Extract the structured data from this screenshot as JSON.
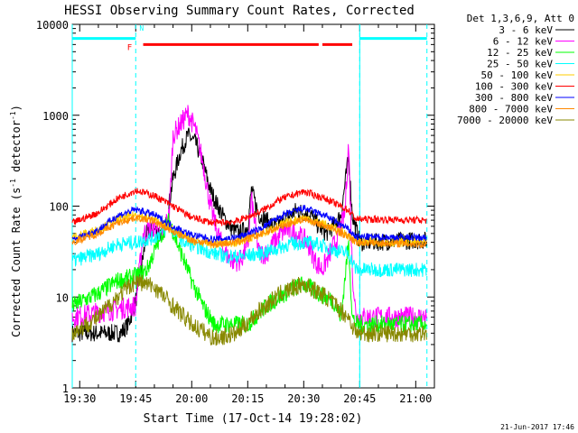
{
  "chart_data": {
    "type": "line",
    "title": "HESSI Observing Summary Count Rates, Corrected",
    "xlabel": "Start Time (17-Oct-14 19:28:02)",
    "ylabel_main": "Corrected Count Rate (s",
    "ylabel_sup": "-1",
    "ylabel_mid": " detector",
    "ylabel_sup2": "-1",
    "ylabel_end": ")",
    "yscale": "log",
    "ylim": [
      1,
      10000
    ],
    "xlim_minutes": [
      -2,
      95
    ],
    "xticks": [
      {
        "m": 0,
        "label": "19:30"
      },
      {
        "m": 15,
        "label": "19:45"
      },
      {
        "m": 30,
        "label": "20:00"
      },
      {
        "m": 45,
        "label": "20:15"
      },
      {
        "m": 60,
        "label": "20:30"
      },
      {
        "m": 75,
        "label": "20:45"
      },
      {
        "m": 90,
        "label": "21:00"
      }
    ],
    "yticks": [
      {
        "v": 1,
        "label": "1"
      },
      {
        "v": 10,
        "label": "10"
      },
      {
        "v": 100,
        "label": "100"
      },
      {
        "v": 1000,
        "label": "1000"
      },
      {
        "v": 10000,
        "label": "10000"
      }
    ],
    "legend_header": "Det 1,3,6,9, Att 0",
    "series": [
      {
        "name": "3 - 6 keV",
        "color": "#000000",
        "points": [
          [
            -2,
            4
          ],
          [
            11,
            4
          ],
          [
            13,
            5
          ],
          [
            15,
            9
          ],
          [
            18,
            50
          ],
          [
            20,
            55
          ],
          [
            22,
            50
          ],
          [
            23,
            60
          ],
          [
            25,
            200
          ],
          [
            27,
            400
          ],
          [
            29,
            600
          ],
          [
            31,
            500
          ],
          [
            33,
            300
          ],
          [
            35,
            150
          ],
          [
            37,
            100
          ],
          [
            39,
            70
          ],
          [
            41,
            55
          ],
          [
            43,
            50
          ],
          [
            45,
            60
          ],
          [
            46,
            150
          ],
          [
            48,
            80
          ],
          [
            50,
            70
          ],
          [
            52,
            60
          ],
          [
            55,
            70
          ],
          [
            58,
            90
          ],
          [
            62,
            80
          ],
          [
            64,
            60
          ],
          [
            66,
            50
          ],
          [
            68,
            60
          ],
          [
            70,
            80
          ],
          [
            72,
            350
          ],
          [
            73,
            80
          ],
          [
            75,
            40
          ],
          [
            78,
            40
          ],
          [
            90,
            42
          ],
          [
            93,
            42
          ]
        ]
      },
      {
        "name": "6 - 12 keV",
        "color": "#ff00ff",
        "points": [
          [
            -2,
            6
          ],
          [
            15,
            8
          ],
          [
            17,
            50
          ],
          [
            20,
            60
          ],
          [
            22,
            50
          ],
          [
            24,
            80
          ],
          [
            25,
            600
          ],
          [
            27,
            800
          ],
          [
            29,
            1050
          ],
          [
            31,
            700
          ],
          [
            33,
            300
          ],
          [
            35,
            100
          ],
          [
            37,
            50
          ],
          [
            39,
            30
          ],
          [
            41,
            25
          ],
          [
            43,
            25
          ],
          [
            45,
            35
          ],
          [
            46,
            120
          ],
          [
            48,
            30
          ],
          [
            50,
            30
          ],
          [
            52,
            40
          ],
          [
            55,
            55
          ],
          [
            58,
            50
          ],
          [
            61,
            40
          ],
          [
            63,
            25
          ],
          [
            65,
            20
          ],
          [
            67,
            30
          ],
          [
            69,
            45
          ],
          [
            71,
            80
          ],
          [
            72,
            500
          ],
          [
            73,
            20
          ],
          [
            74,
            6
          ],
          [
            93,
            6
          ]
        ]
      },
      {
        "name": "12 - 25 keV",
        "color": "#00ff00",
        "points": [
          [
            -2,
            8
          ],
          [
            5,
            11
          ],
          [
            10,
            15
          ],
          [
            15,
            17
          ],
          [
            18,
            20
          ],
          [
            22,
            50
          ],
          [
            24,
            70
          ],
          [
            26,
            40
          ],
          [
            28,
            25
          ],
          [
            30,
            15
          ],
          [
            33,
            8
          ],
          [
            36,
            5
          ],
          [
            45,
            5
          ],
          [
            50,
            8
          ],
          [
            55,
            11
          ],
          [
            60,
            14
          ],
          [
            64,
            11
          ],
          [
            68,
            9
          ],
          [
            70,
            6
          ],
          [
            72,
            40
          ],
          [
            73,
            6
          ],
          [
            74,
            5
          ],
          [
            93,
            5
          ]
        ]
      },
      {
        "name": "25 - 50 keV",
        "color": "#00ffff",
        "points": [
          [
            -2,
            25
          ],
          [
            5,
            30
          ],
          [
            10,
            38
          ],
          [
            15,
            40
          ],
          [
            20,
            45
          ],
          [
            24,
            60
          ],
          [
            28,
            40
          ],
          [
            32,
            35
          ],
          [
            36,
            30
          ],
          [
            40,
            28
          ],
          [
            44,
            28
          ],
          [
            48,
            30
          ],
          [
            52,
            33
          ],
          [
            56,
            38
          ],
          [
            60,
            40
          ],
          [
            64,
            38
          ],
          [
            68,
            33
          ],
          [
            72,
            30
          ],
          [
            74,
            20
          ],
          [
            93,
            20
          ]
        ]
      },
      {
        "name": "50 - 100 keV",
        "color": "#ffcc00",
        "points": [
          [
            -2,
            45
          ],
          [
            5,
            55
          ],
          [
            10,
            70
          ],
          [
            15,
            80
          ],
          [
            20,
            70
          ],
          [
            25,
            55
          ],
          [
            30,
            42
          ],
          [
            36,
            38
          ],
          [
            42,
            40
          ],
          [
            48,
            48
          ],
          [
            54,
            62
          ],
          [
            60,
            75
          ],
          [
            66,
            62
          ],
          [
            72,
            48
          ],
          [
            74,
            40
          ],
          [
            93,
            40
          ]
        ]
      },
      {
        "name": "100 - 300 keV",
        "color": "#ff0000",
        "points": [
          [
            -2,
            65
          ],
          [
            5,
            85
          ],
          [
            10,
            120
          ],
          [
            15,
            150
          ],
          [
            20,
            130
          ],
          [
            25,
            100
          ],
          [
            30,
            75
          ],
          [
            36,
            65
          ],
          [
            42,
            68
          ],
          [
            48,
            85
          ],
          [
            54,
            120
          ],
          [
            60,
            145
          ],
          [
            66,
            120
          ],
          [
            72,
            90
          ],
          [
            74,
            72
          ],
          [
            93,
            70
          ]
        ]
      },
      {
        "name": "300 - 800 keV",
        "color": "#0000ff",
        "points": [
          [
            -2,
            42
          ],
          [
            5,
            55
          ],
          [
            10,
            78
          ],
          [
            15,
            92
          ],
          [
            20,
            80
          ],
          [
            25,
            60
          ],
          [
            30,
            48
          ],
          [
            36,
            43
          ],
          [
            42,
            45
          ],
          [
            48,
            55
          ],
          [
            54,
            78
          ],
          [
            60,
            95
          ],
          [
            66,
            78
          ],
          [
            72,
            55
          ],
          [
            74,
            46
          ],
          [
            93,
            45
          ]
        ]
      },
      {
        "name": "800 - 7000 keV",
        "color": "#ff8800",
        "points": [
          [
            -2,
            40
          ],
          [
            5,
            50
          ],
          [
            10,
            65
          ],
          [
            15,
            75
          ],
          [
            20,
            68
          ],
          [
            25,
            52
          ],
          [
            30,
            42
          ],
          [
            36,
            38
          ],
          [
            42,
            40
          ],
          [
            48,
            48
          ],
          [
            54,
            60
          ],
          [
            60,
            72
          ],
          [
            66,
            60
          ],
          [
            72,
            46
          ],
          [
            74,
            40
          ],
          [
            93,
            38
          ]
        ]
      },
      {
        "name": "7000 - 20000 keV",
        "color": "#888800",
        "points": [
          [
            -2,
            4
          ],
          [
            5,
            6
          ],
          [
            10,
            10
          ],
          [
            15,
            15
          ],
          [
            20,
            13
          ],
          [
            25,
            8
          ],
          [
            30,
            5
          ],
          [
            36,
            3.5
          ],
          [
            42,
            4
          ],
          [
            48,
            7
          ],
          [
            54,
            11
          ],
          [
            60,
            14
          ],
          [
            66,
            10
          ],
          [
            72,
            6
          ],
          [
            74,
            4
          ],
          [
            93,
            4
          ]
        ]
      }
    ],
    "status_bars": [
      {
        "label": "",
        "color": "#00ffff",
        "start": -2,
        "end": 15,
        "y": 7000
      },
      {
        "label": "",
        "color": "#00ffff",
        "start": 75,
        "end": 93,
        "y": 7000
      },
      {
        "label": "",
        "color": "#ff0000",
        "start": 17,
        "end": 64,
        "y": 6000
      },
      {
        "label": "",
        "color": "#ff0000",
        "start": 65,
        "end": 73,
        "y": 6000
      }
    ],
    "flag_F": "F",
    "flag_N": "N",
    "night_lines_minutes": [
      15,
      75,
      93
    ],
    "day_line_minutes": [
      -2,
      75
    ]
  },
  "footer": {
    "date": "21-Jun-2017 17:46"
  }
}
